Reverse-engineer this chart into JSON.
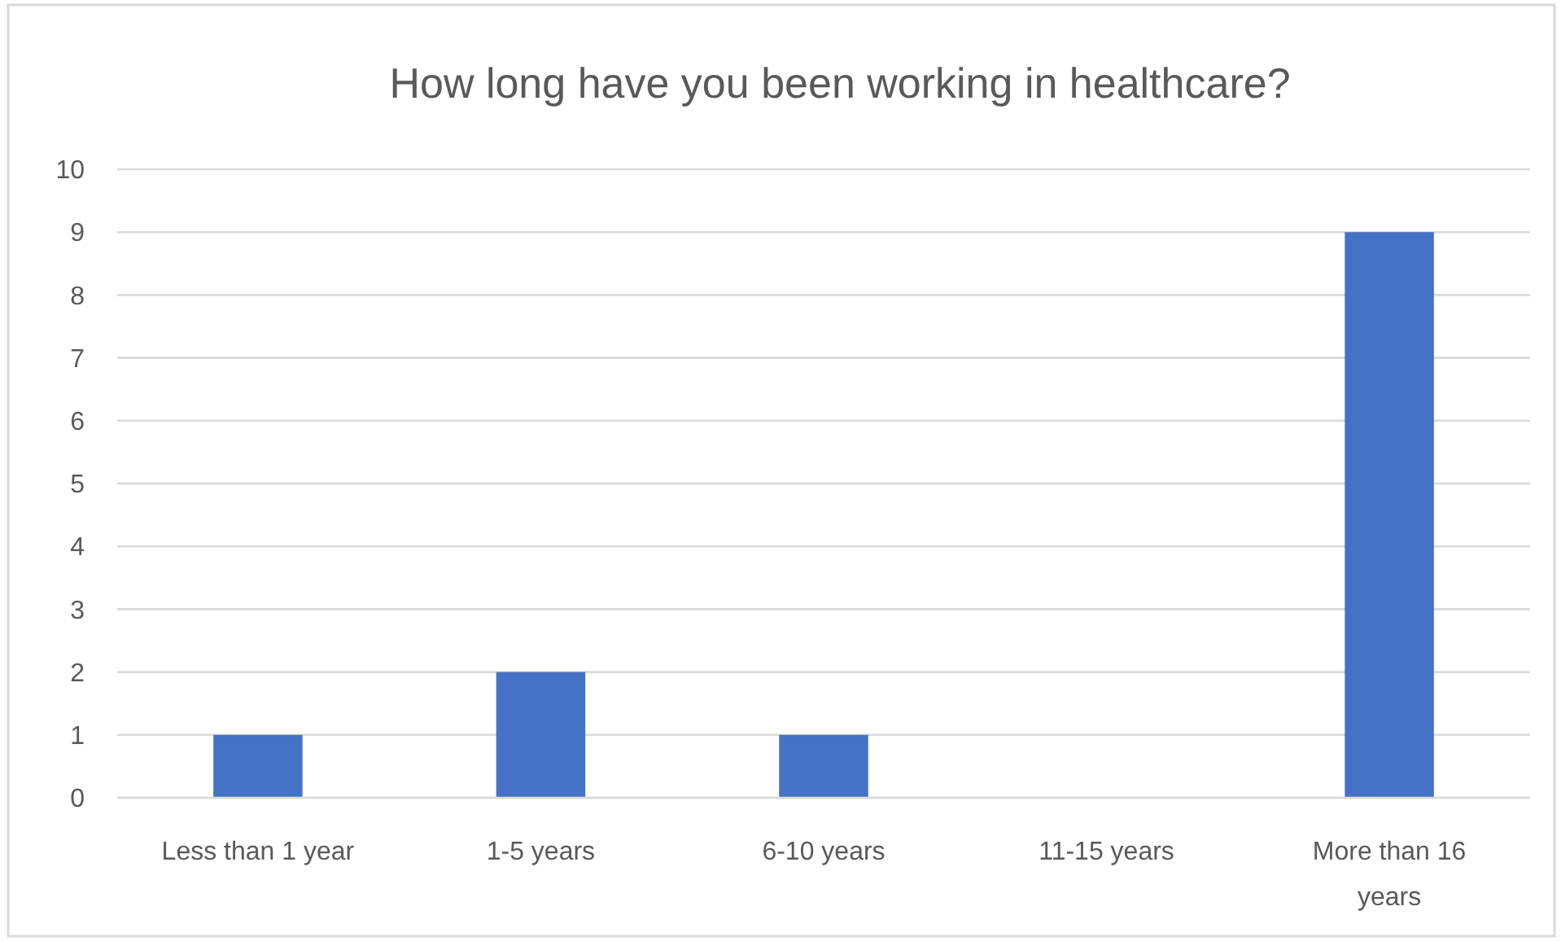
{
  "chart_data": {
    "type": "bar",
    "title": "How long have you been working in healthcare?",
    "categories": [
      "Less than 1 year",
      "1-5 years",
      "6-10 years",
      "11-15 years",
      "More than 16 years"
    ],
    "values": [
      1,
      2,
      1,
      0,
      9
    ],
    "color": "#4472c4",
    "ylim": [
      0,
      10
    ],
    "yticks": [
      0,
      1,
      2,
      3,
      4,
      5,
      6,
      7,
      8,
      9,
      10
    ],
    "grid": "y"
  }
}
